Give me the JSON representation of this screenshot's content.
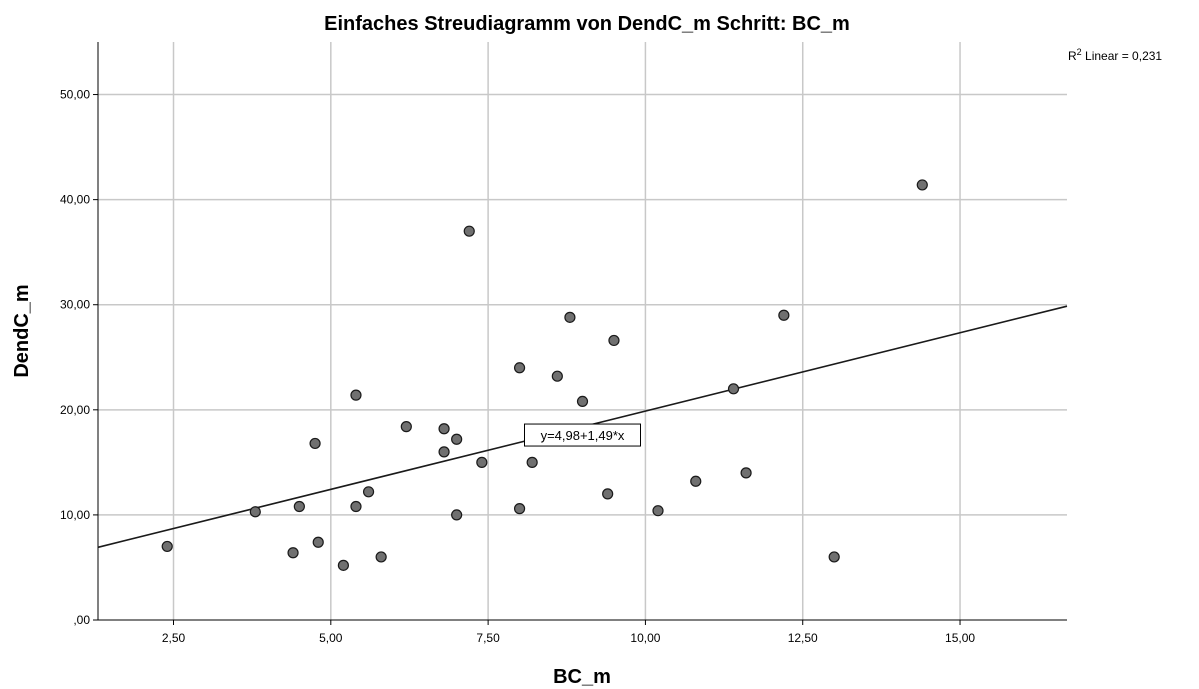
{
  "chart_data": {
    "type": "scatter",
    "title": "Einfaches Streudiagramm  von DendC_m Schritt: BC_m",
    "xlabel": "BC_m",
    "ylabel": "DendC_m",
    "xlim": [
      1.3,
      16.7
    ],
    "ylim": [
      0,
      55
    ],
    "x_ticks": [
      "2,50",
      "5,00",
      "7,50",
      "10,00",
      "12,50",
      "15,00"
    ],
    "x_tick_values": [
      2.5,
      5,
      7.5,
      10,
      12.5,
      15
    ],
    "y_ticks": [
      ",00",
      "10,00",
      "20,00",
      "30,00",
      "40,00",
      "50,00"
    ],
    "y_tick_values": [
      0,
      10,
      20,
      30,
      40,
      50
    ],
    "grid": true,
    "r2": {
      "prefix": "R",
      "superscript": "2",
      "suffix": " Linear = 0,231"
    },
    "fit_line": {
      "intercept": 4.98,
      "slope": 1.49,
      "label": "y=4,98+1,49*x",
      "label_at": [
        9.0,
        17.6
      ]
    },
    "points": [
      {
        "x": 2.4,
        "y": 7.0
      },
      {
        "x": 3.8,
        "y": 10.3
      },
      {
        "x": 4.4,
        "y": 6.4
      },
      {
        "x": 4.5,
        "y": 10.8
      },
      {
        "x": 4.75,
        "y": 16.8
      },
      {
        "x": 4.8,
        "y": 7.4
      },
      {
        "x": 5.2,
        "y": 5.2
      },
      {
        "x": 5.4,
        "y": 21.4
      },
      {
        "x": 5.4,
        "y": 10.8
      },
      {
        "x": 5.6,
        "y": 12.2
      },
      {
        "x": 5.8,
        "y": 6.0
      },
      {
        "x": 6.2,
        "y": 18.4
      },
      {
        "x": 6.8,
        "y": 18.2
      },
      {
        "x": 6.8,
        "y": 16.0
      },
      {
        "x": 7.0,
        "y": 17.2
      },
      {
        "x": 7.0,
        "y": 10.0
      },
      {
        "x": 7.2,
        "y": 37.0
      },
      {
        "x": 7.4,
        "y": 15.0
      },
      {
        "x": 8.0,
        "y": 24.0
      },
      {
        "x": 8.0,
        "y": 10.6
      },
      {
        "x": 8.2,
        "y": 15.0
      },
      {
        "x": 8.6,
        "y": 23.2
      },
      {
        "x": 8.8,
        "y": 28.8
      },
      {
        "x": 9.0,
        "y": 20.8
      },
      {
        "x": 9.4,
        "y": 12.0
      },
      {
        "x": 9.5,
        "y": 26.6
      },
      {
        "x": 10.2,
        "y": 10.4
      },
      {
        "x": 10.8,
        "y": 13.2
      },
      {
        "x": 11.4,
        "y": 22.0
      },
      {
        "x": 11.6,
        "y": 14.0
      },
      {
        "x": 12.2,
        "y": 29.0
      },
      {
        "x": 13.0,
        "y": 6.0
      },
      {
        "x": 14.4,
        "y": 41.4
      }
    ],
    "colors": {
      "marker_fill": "#707070",
      "marker_stroke": "#1a1a1a",
      "grid": "#c8c8c8",
      "axis": "#000000",
      "line": "#1a1a1a"
    }
  }
}
